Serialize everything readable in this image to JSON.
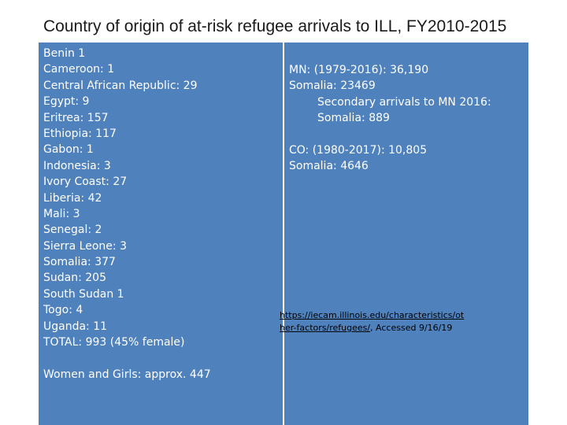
{
  "title": "Country of origin of at-risk refugee arrivals to ILL, FY2010-2015",
  "left_column": {
    "items": [
      "Benin 1",
      "Cameroon: 1",
      "Central African Republic:  29",
      "Egypt: 9",
      "Eritrea:  157",
      "Ethiopia:  117",
      "Gabon: 1",
      "Indonesia:  3",
      "Ivory Coast:  27",
      "Liberia:  42",
      "Mali:  3",
      "Senegal: 2",
      "Sierra Leone: 3",
      "Somalia: 377",
      "Sudan:  205",
      "South Sudan 1",
      "Togo: 4",
      "Uganda:  11",
      "TOTAL: 993 (45% female)"
    ],
    "women_and_girls": "Women and Girls:  approx.  447"
  },
  "right_column": {
    "mn_total": "MN:  (1979-2016):  36,190",
    "mn_somalia": "Somalia:  23469",
    "secondary_label": "Secondary arrivals to MN 2016:",
    "secondary_somalia": "Somalia:  889",
    "co_total": "CO:  (1980-2017):  10,805",
    "co_somalia": "Somalia:  4646"
  },
  "source": {
    "link_text": "https://iecam.illinois.edu/characteristics/other-factors/refugees/",
    "accessed": ", Accessed 9/16/19"
  },
  "colors": {
    "panel_background": "#4f81bd",
    "panel_text": "#ffffff",
    "title_text": "#1a1a1a"
  }
}
